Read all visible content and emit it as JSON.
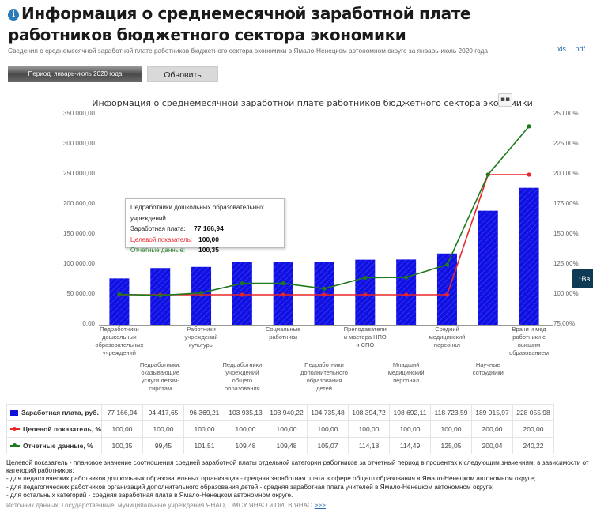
{
  "header": {
    "title": "Информация о среднемесячной заработной плате работников бюджетного сектора экономики",
    "subtitle": "Сведения о среднемесячной заработной плате работников бюджетного сектора экономики в Ямало-Ненецком автономном округе за январь-июль 2020 года",
    "exports": [
      ".xls",
      ".pdf"
    ],
    "info_icon": "info-icon"
  },
  "controls": {
    "period_label": "Период: январь-июль 2020 года",
    "refresh_label": "Обновить"
  },
  "side_button": {
    "label": "↑Вв"
  },
  "tooltip": {
    "category": "Педработники дошкольных образовательных учреждений",
    "salary_label": "Заработная плата:",
    "salary_value": "77 166,94",
    "target_label": "Целевой показатель:",
    "target_value": "100,00",
    "actual_label": "Отчетные данные:",
    "actual_value": "100,35"
  },
  "chart_data": {
    "type": "bar",
    "title": "Информация о среднемесячной заработной плате работников бюджетного сектора экономики",
    "categories": [
      "Педработники дошкольных образовательных учреждений",
      "Педработники, оказывающие услуги детям-сиротам",
      "Работники учреждений культуры",
      "Педработники учреждений общего образования",
      "Социальные работники",
      "Педработники дополнительного образования детей",
      "Преподаватели и мастера НПО и СПО",
      "Младший медицинский персонал",
      "Средний медицинский персонал",
      "Научные сотрудники",
      "Врачи и мед работники с высшим образованием"
    ],
    "series": [
      {
        "name": "Заработная плата, руб.",
        "type": "bar",
        "axis": "left",
        "color": "#1010e0",
        "values": [
          77166.94,
          94417.65,
          96369.21,
          103935.13,
          103940.22,
          104735.48,
          108394.72,
          108692.11,
          118723.59,
          189915.97,
          228055.98
        ],
        "labels": [
          "77 166,94",
          "94 417,65",
          "96 369,21",
          "103 935,13",
          "103 940,22",
          "104 735,48",
          "108 394,72",
          "108 692,11",
          "118 723,59",
          "189 915,97",
          "228 055,98"
        ]
      },
      {
        "name": "Целевой показатель, %",
        "type": "line",
        "axis": "right",
        "color": "#e8262a",
        "values": [
          100.0,
          100.0,
          100.0,
          100.0,
          100.0,
          100.0,
          100.0,
          100.0,
          100.0,
          200.0,
          200.0
        ],
        "labels": [
          "100,00",
          "100,00",
          "100,00",
          "100,00",
          "100,00",
          "100,00",
          "100,00",
          "100,00",
          "100,00",
          "200,00",
          "200,00"
        ]
      },
      {
        "name": "Отчетные данные, %",
        "type": "line",
        "axis": "right",
        "color": "#1e7a1e",
        "values": [
          100.35,
          99.45,
          101.51,
          109.48,
          109.48,
          105.07,
          114.18,
          114.49,
          125.05,
          200.04,
          240.22
        ],
        "labels": [
          "100,35",
          "99,45",
          "101,51",
          "109,48",
          "109,48",
          "105,07",
          "114,18",
          "114,49",
          "125,05",
          "200,04",
          "240,22"
        ]
      }
    ],
    "y_left": {
      "min": 0,
      "max": 350000,
      "ticks": [
        "0,00",
        "50 000,00",
        "100 000,00",
        "150 000,00",
        "200 000,00",
        "250 000,00",
        "300 000,00",
        "350 000,00"
      ]
    },
    "y_right": {
      "min": 75,
      "max": 250,
      "ticks": [
        "75,00%",
        "100,00%",
        "125,00%",
        "150,00%",
        "175,00%",
        "200,00%",
        "225,00%",
        "250,00%"
      ]
    },
    "grid": false,
    "legend_position": "table-below"
  },
  "notes": {
    "lines": [
      "Целевой показатель - плановое значение соотношения средней заработной платы отдельной категории работников за отчетный период в процентах к следующим значениям, в зависимости от",
      "категорий работников:",
      "- для педагогических работников дошкольных образовательных организация - средняя заработная плата в сфере общего образования в Ямало-Ненецком автономном округе;",
      "- для педагогических работников организаций дополнительного образования детей - средняя заработная плата учителей в Ямало-Ненецком автономном округе;",
      "- для остальных категорий - средняя заработная плата в Ямало-Ненецком автономном округе."
    ],
    "source_text": "Источник данных: Государственные, муниципальные учреждения ЯНАО, ОМСУ ЯНАО и ОИГВ ЯНАО",
    "source_link": ">>>"
  }
}
